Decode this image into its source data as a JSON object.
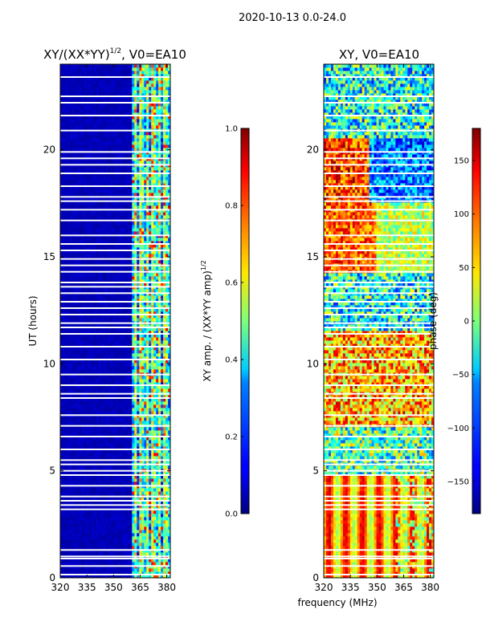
{
  "suptitle": "2020-10-13 0.0-24.0",
  "xlabel_shared": "frequency (MHz)",
  "chart_data": [
    {
      "type": "heatmap",
      "title_main": "XY/(XX*YY)",
      "title_sup": "1/2",
      "title_rest": ", V0=EA10",
      "ylabel": "UT (hours)",
      "xlim": [
        320,
        382
      ],
      "ylim": [
        0,
        24
      ],
      "xticks": [
        "320",
        "335",
        "350",
        "365",
        "380"
      ],
      "xtick_values": [
        320,
        335,
        350,
        365,
        380
      ],
      "yticks": [
        "0",
        "5",
        "10",
        "15",
        "20"
      ],
      "ytick_values": [
        0,
        5,
        10,
        15,
        20
      ],
      "colorbar": {
        "label": "XY amp. / (XX*YY amp)",
        "label_sup": "1/2",
        "range": [
          0.0,
          1.0
        ],
        "ticks": [
          "0.0",
          "0.2",
          "0.4",
          "0.6",
          "0.8",
          "1.0"
        ],
        "tick_values": [
          0.0,
          0.2,
          0.4,
          0.6,
          0.8,
          1.0
        ],
        "colormap": "jet"
      }
    },
    {
      "type": "heatmap",
      "title": "XY, V0=EA10",
      "xlim": [
        320,
        382
      ],
      "ylim": [
        0,
        24
      ],
      "xticks": [
        "320",
        "335",
        "350",
        "365",
        "380"
      ],
      "xtick_values": [
        320,
        335,
        350,
        365,
        380
      ],
      "yticks": [
        "0",
        "5",
        "10",
        "15",
        "20"
      ],
      "ytick_values": [
        0,
        5,
        10,
        15,
        20
      ],
      "colorbar": {
        "label": "phase (deg)",
        "range": [
          -180,
          180
        ],
        "ticks": [
          "−150",
          "−100",
          "−50",
          "0",
          "50",
          "100",
          "150"
        ],
        "tick_values": [
          -150,
          -100,
          -50,
          0,
          50,
          100,
          150
        ],
        "colormap": "jet"
      }
    }
  ]
}
